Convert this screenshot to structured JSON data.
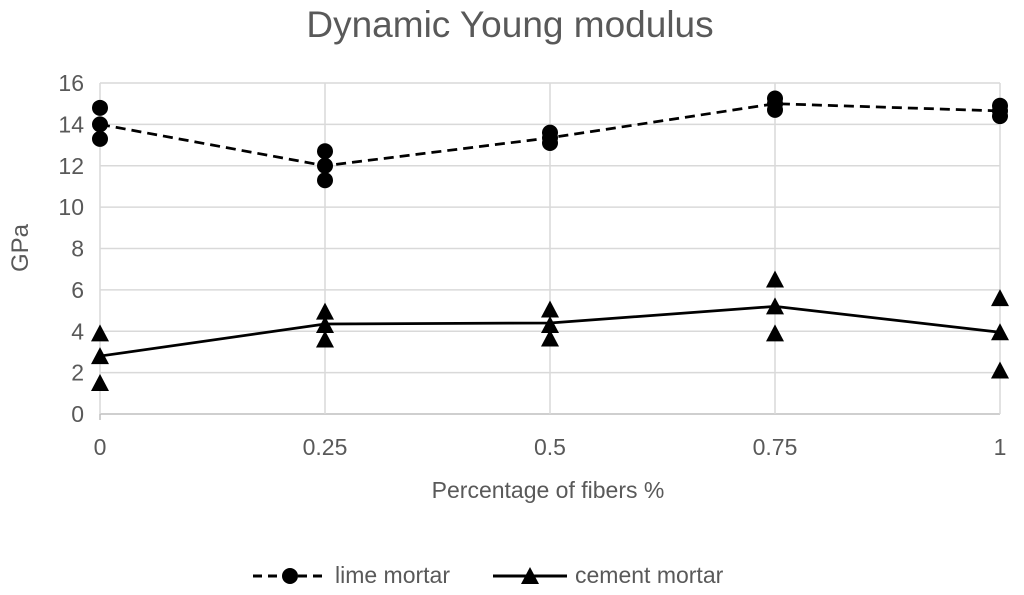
{
  "colors": {
    "text": "#595959",
    "gridline": "#D9D9D9",
    "axis_line": "#BFBFBF",
    "series": "#000000",
    "background": "#FFFFFF"
  },
  "chart_data": {
    "type": "scatter",
    "title": "Dynamic Young modulus",
    "xlabel": "Percentage of fibers %",
    "ylabel": "GPa",
    "xlim": [
      0,
      1
    ],
    "ylim": [
      0,
      16
    ],
    "x_tick_values": [
      0,
      0.25,
      0.5,
      0.75,
      1
    ],
    "x_tick_labels": [
      "0",
      "0.25",
      "0.5",
      "0.75",
      "1"
    ],
    "y_ticks": [
      0,
      2,
      4,
      6,
      8,
      10,
      12,
      14,
      16
    ],
    "grid": true,
    "legend_position": "bottom",
    "series": [
      {
        "name": "lime mortar",
        "marker": "circle",
        "line_style": "dashed",
        "x": [
          0,
          0.25,
          0.5,
          0.75,
          1
        ],
        "scatter": [
          [
            14.8,
            14.0,
            13.3
          ],
          [
            12.7,
            12.0,
            11.3
          ],
          [
            13.6,
            13.35,
            13.1
          ],
          [
            15.25,
            15.0,
            14.7
          ],
          [
            14.9,
            14.65,
            14.4
          ]
        ],
        "line_values": [
          14.0,
          12.0,
          13.35,
          15.0,
          14.65
        ]
      },
      {
        "name": "cement mortar",
        "marker": "triangle",
        "line_style": "solid",
        "x": [
          0,
          0.25,
          0.5,
          0.75,
          1
        ],
        "scatter": [
          [
            3.9,
            2.8,
            1.5
          ],
          [
            4.95,
            4.3,
            3.6
          ],
          [
            5.05,
            4.3,
            3.65
          ],
          [
            6.5,
            5.2,
            3.9
          ],
          [
            5.6,
            3.95,
            2.1
          ]
        ],
        "line_values": [
          2.8,
          4.35,
          4.4,
          5.2,
          3.95
        ]
      }
    ]
  }
}
